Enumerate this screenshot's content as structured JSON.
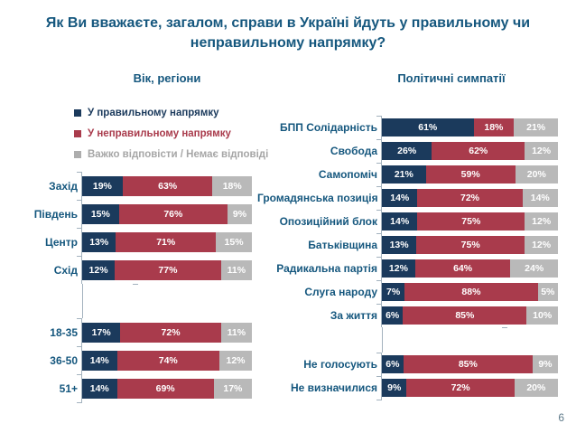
{
  "title": "Як Ви вважаєте, загалом, справи в Україні йдуть у правильному чи неправильному напрямку?",
  "panels": {
    "left_subtitle": "Вік, регіони",
    "right_subtitle": "Політичні симпатії"
  },
  "legend": [
    {
      "label": "У правильному напрямку",
      "color": "#1B3A5C",
      "text_color": "#1B3A5C"
    },
    {
      "label": "У неправильному напрямку",
      "color": "#A93B4C",
      "text_color": "#A93B4C"
    },
    {
      "label": "Важко відповісти / Немає відповіді",
      "color": "#ADADAD",
      "text_color": "#A6A6A6"
    }
  ],
  "colors": {
    "right_direction": "#1B3A5C",
    "wrong_direction": "#A93B4C",
    "no_answer": "#B9B9B9",
    "heading_blue": "#15577E",
    "axis": "#A3B2BE"
  },
  "unit": "%",
  "page_number": "6",
  "chart_data": [
    {
      "type": "bar",
      "orientation": "horizontal",
      "stacked": true,
      "title": "Вік, регіони",
      "x_range": [
        0,
        100
      ],
      "grid": false,
      "legend_position": "top-left",
      "categories": [
        "Захід",
        "Південь",
        "Центр",
        "Схід",
        "18-35",
        "36-50",
        "51+"
      ],
      "gap_after_index": 3,
      "series": [
        {
          "name": "У правильному напрямку",
          "slug": "right-direction",
          "color": "#1B3A5C",
          "values": [
            19,
            15,
            13,
            12,
            17,
            14,
            14
          ]
        },
        {
          "name": "У неправильному напрямку",
          "slug": "wrong-direction",
          "color": "#A93B4C",
          "values": [
            63,
            76,
            71,
            77,
            72,
            74,
            69
          ]
        },
        {
          "name": "Важко відповісти / Немає відповіді",
          "slug": "no-answer",
          "color": "#B9B9B9",
          "values": [
            18,
            9,
            15,
            11,
            11,
            12,
            17
          ]
        }
      ]
    },
    {
      "type": "bar",
      "orientation": "horizontal",
      "stacked": true,
      "title": "Політичні симпатії",
      "x_range": [
        0,
        100
      ],
      "grid": false,
      "categories": [
        "БПП Солідарність",
        "Свобода",
        "Самопоміч",
        "Громадянська позиція",
        "Опозиційний блок",
        "Батьківщина",
        "Радикальна партія",
        "Слуга народу",
        "За життя",
        "Не голосують",
        "Не визначилися"
      ],
      "gap_after_index": 8,
      "series": [
        {
          "name": "У правильному напрямку",
          "slug": "right-direction",
          "color": "#1B3A5C",
          "values": [
            61,
            26,
            21,
            14,
            14,
            13,
            12,
            7,
            6,
            6,
            9
          ]
        },
        {
          "name": "У неправильному напрямку",
          "slug": "wrong-direction",
          "color": "#A93B4C",
          "values": [
            18,
            62,
            59,
            72,
            75,
            75,
            64,
            88,
            85,
            85,
            72
          ]
        },
        {
          "name": "Важко відповісти / Немає відповіді",
          "slug": "no-answer",
          "color": "#B9B9B9",
          "values": [
            21,
            12,
            20,
            14,
            12,
            12,
            24,
            5,
            10,
            9,
            20
          ]
        }
      ]
    }
  ]
}
